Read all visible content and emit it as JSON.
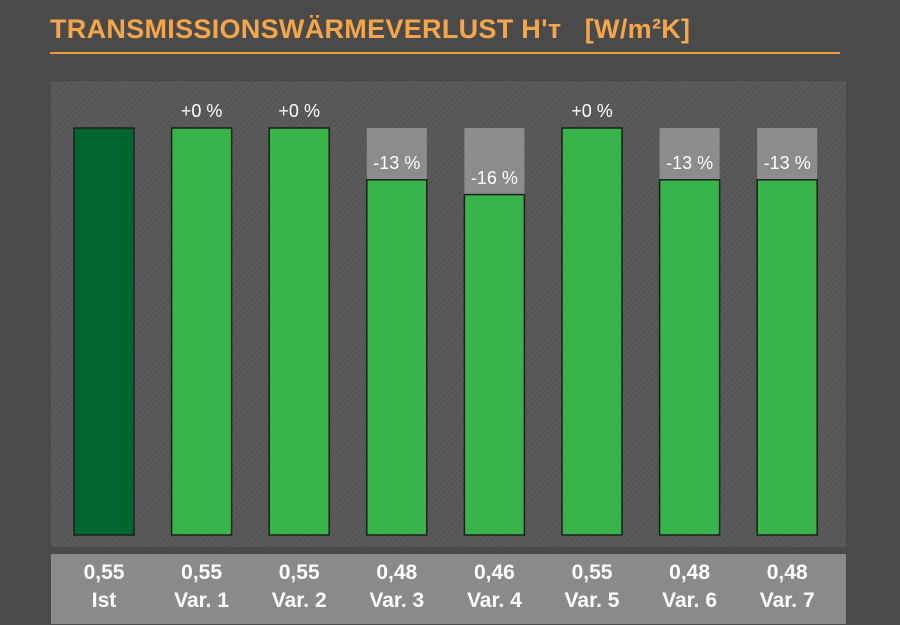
{
  "header": {
    "title": "TRANSMISSIONSWÄRMEVERLUST H'ᴛ   [W/m²K]"
  },
  "colors": {
    "background": "#4a4a4a",
    "title": "#f5a54a",
    "reference_bar": "#00662f",
    "variant_bar": "#38b44a",
    "reference_ghost": "#8c8c8c"
  },
  "chart_data": {
    "type": "bar",
    "title": "TRANSMISSIONSWÄRMEVERLUST H'ᴛ   [W/m²K]",
    "categories": [
      "Ist",
      "Var. 1",
      "Var. 2",
      "Var. 3",
      "Var. 4",
      "Var. 5",
      "Var. 6",
      "Var. 7"
    ],
    "values": [
      0.55,
      0.55,
      0.55,
      0.48,
      0.46,
      0.55,
      0.48,
      0.48
    ],
    "value_labels": [
      "0,55",
      "0,55",
      "0,55",
      "0,48",
      "0,46",
      "0,55",
      "0,48",
      "0,48"
    ],
    "change_labels": [
      "",
      "+0 %",
      "+0 %",
      "-13 %",
      "-16 %",
      "+0 %",
      "-13 %",
      "-13 %"
    ],
    "reference_value": 0.55,
    "ylim": [
      0,
      0.55
    ],
    "grid": false,
    "legend": "none"
  }
}
